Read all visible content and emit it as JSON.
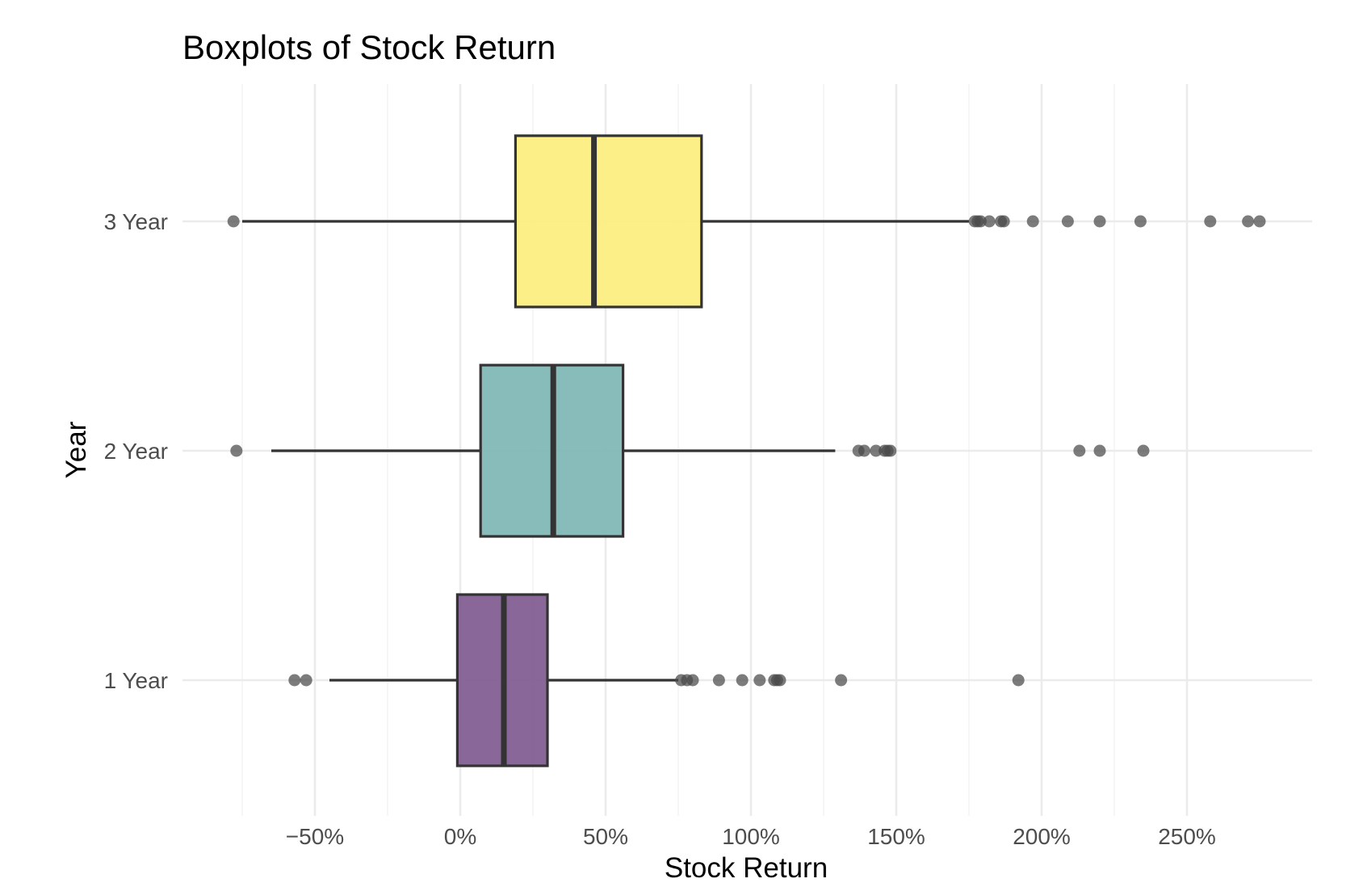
{
  "chart_data": {
    "type": "boxplot",
    "orientation": "horizontal",
    "title": "Boxplots of Stock Return",
    "xlabel": "Stock Return",
    "ylabel": "Year",
    "xlim": [
      -0.85,
      2.9
    ],
    "x_ticks": [
      -0.5,
      0,
      0.5,
      1.0,
      1.5,
      2.0,
      2.5
    ],
    "x_tick_labels": [
      "−50%",
      "0%",
      "50%",
      "100%",
      "150%",
      "200%",
      "250%"
    ],
    "grid": true,
    "legend": "none",
    "series": [
      {
        "name": "1 Year",
        "color": "#7F5A8F",
        "whisker_low": -0.45,
        "q1": -0.01,
        "median": 0.15,
        "q3": 0.3,
        "whisker_high": 0.75,
        "outliers": [
          -0.57,
          -0.53,
          0.76,
          0.78,
          0.8,
          0.89,
          0.97,
          1.03,
          1.08,
          1.09,
          1.1,
          1.31,
          1.92
        ]
      },
      {
        "name": "2 Year",
        "color": "#7EB6B4",
        "whisker_low": -0.65,
        "q1": 0.07,
        "median": 0.32,
        "q3": 0.56,
        "whisker_high": 1.29,
        "outliers": [
          -0.77,
          1.37,
          1.39,
          1.43,
          1.46,
          1.47,
          1.48,
          2.13,
          2.2,
          2.35
        ]
      },
      {
        "name": "3 Year",
        "color": "#FCEE7E",
        "whisker_low": -0.75,
        "q1": 0.19,
        "median": 0.46,
        "q3": 0.83,
        "whisker_high": 1.75,
        "outliers": [
          -0.78,
          1.77,
          1.78,
          1.79,
          1.82,
          1.86,
          1.87,
          1.97,
          2.09,
          2.2,
          2.34,
          2.58,
          2.71,
          2.75
        ]
      }
    ]
  }
}
